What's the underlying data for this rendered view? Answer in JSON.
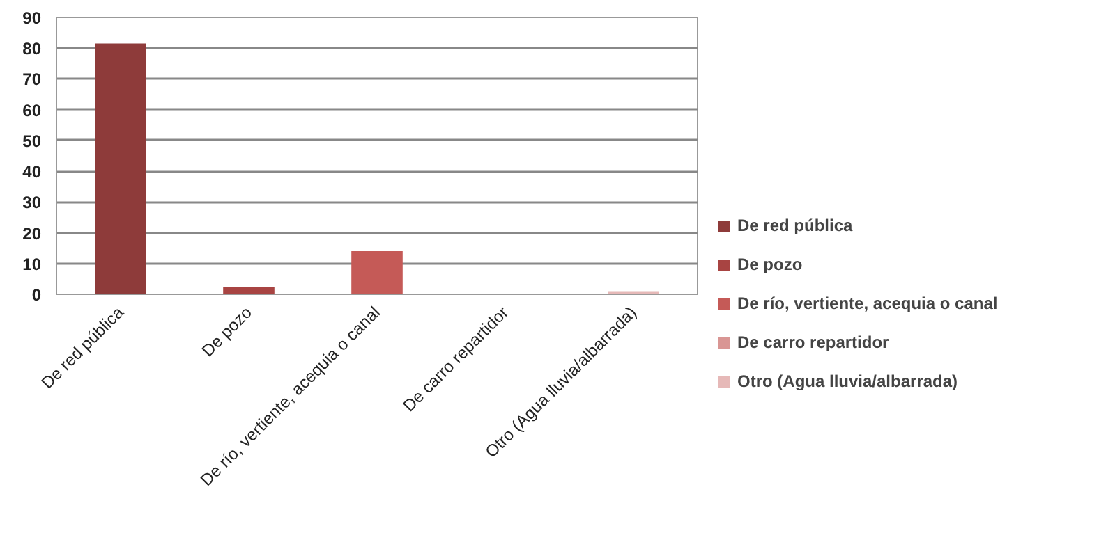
{
  "chart_data": {
    "type": "bar",
    "categories": [
      "De red pública",
      "De pozo",
      "De río, vertiente, acequia o canal",
      "De carro repartidor",
      "Otro (Agua lluvia/albarrada)"
    ],
    "series": [
      {
        "name": "De red pública",
        "color": "#8e3b3a",
        "values": [
          81.5,
          null,
          null,
          null,
          null
        ]
      },
      {
        "name": "De pozo",
        "color": "#a84442",
        "values": [
          null,
          2.5,
          null,
          null,
          null
        ]
      },
      {
        "name": "De río, vertiente, acequia o canal",
        "color": "#c55a57",
        "values": [
          null,
          null,
          14,
          null,
          null
        ]
      },
      {
        "name": "De carro repartidor",
        "color": "#d99694",
        "values": [
          null,
          null,
          null,
          0,
          null
        ]
      },
      {
        "name": "Otro (Agua lluvia/albarrada)",
        "color": "#e6b9b8",
        "values": [
          null,
          null,
          null,
          null,
          1
        ]
      }
    ],
    "ylim": [
      0,
      90
    ],
    "yticks": [
      0,
      10,
      20,
      30,
      40,
      50,
      60,
      70,
      80,
      90
    ],
    "grid": "y",
    "legend": "right"
  }
}
